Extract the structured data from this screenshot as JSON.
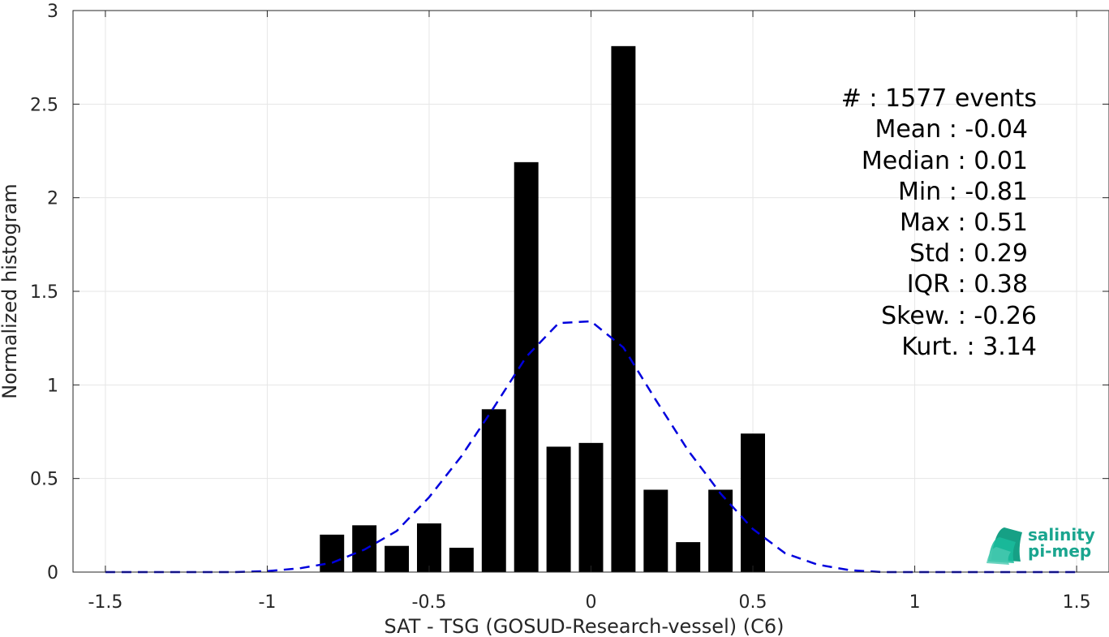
{
  "chart_data": {
    "type": "bar",
    "xlabel": "SAT - TSG (GOSUD-Research-vessel) (C6)",
    "ylabel": "Normalized histogram",
    "xlim": [
      -1.6,
      1.6
    ],
    "ylim": [
      0,
      3
    ],
    "grid": true,
    "x_ticks": [
      -1.5,
      -1,
      -0.5,
      0,
      0.5,
      1,
      1.5
    ],
    "x_tick_labels": [
      "-1.5",
      "-1",
      "-0.5",
      "0",
      "0.5",
      "1",
      "1.5"
    ],
    "y_ticks": [
      0,
      0.5,
      1,
      1.5,
      2,
      2.5,
      3
    ],
    "y_tick_labels": [
      "0",
      "0.5",
      "1",
      "1.5",
      "2",
      "2.5",
      "3"
    ],
    "bar_width": 0.075,
    "series": [
      {
        "type": "bar",
        "color": "#000000",
        "x": [
          -0.8,
          -0.7,
          -0.6,
          -0.5,
          -0.4,
          -0.3,
          -0.2,
          -0.1,
          0.0,
          0.1,
          0.2,
          0.3,
          0.4,
          0.5
        ],
        "values": [
          0.2,
          0.25,
          0.14,
          0.26,
          0.13,
          0.87,
          2.19,
          0.67,
          0.69,
          2.81,
          0.44,
          0.16,
          0.44,
          0.74
        ]
      },
      {
        "type": "line",
        "style": "dashed",
        "color": "#0000dd",
        "x": [
          -1.5,
          -1.4,
          -1.3,
          -1.2,
          -1.1,
          -1.0,
          -0.9,
          -0.8,
          -0.7,
          -0.6,
          -0.5,
          -0.4,
          -0.3,
          -0.2,
          -0.1,
          0.0,
          0.1,
          0.2,
          0.3,
          0.4,
          0.5,
          0.6,
          0.7,
          0.8,
          0.9,
          1.0,
          1.1,
          1.2,
          1.3,
          1.4,
          1.5
        ],
        "values": [
          0.0,
          0.0,
          0.0,
          0.0,
          0.0,
          0.005,
          0.02,
          0.05,
          0.12,
          0.22,
          0.4,
          0.62,
          0.88,
          1.15,
          1.33,
          1.34,
          1.2,
          0.92,
          0.65,
          0.42,
          0.23,
          0.1,
          0.04,
          0.01,
          0.0,
          0.0,
          0.0,
          0.0,
          0.0,
          0.0,
          0.0
        ]
      }
    ]
  },
  "stats": [
    {
      "label": "#  : 1577 events"
    },
    {
      "label": "Mean : -0.04"
    },
    {
      "label": "Median : 0.01"
    },
    {
      "label": "Min : -0.81"
    },
    {
      "label": "Max : 0.51"
    },
    {
      "label": "Std : 0.29"
    },
    {
      "label": "IQR : 0.38"
    },
    {
      "label": "Skew. : -0.26"
    },
    {
      "label": "Kurt. : 3.14"
    }
  ],
  "logo": {
    "line1": "salinity",
    "line2": "pi-mep"
  }
}
